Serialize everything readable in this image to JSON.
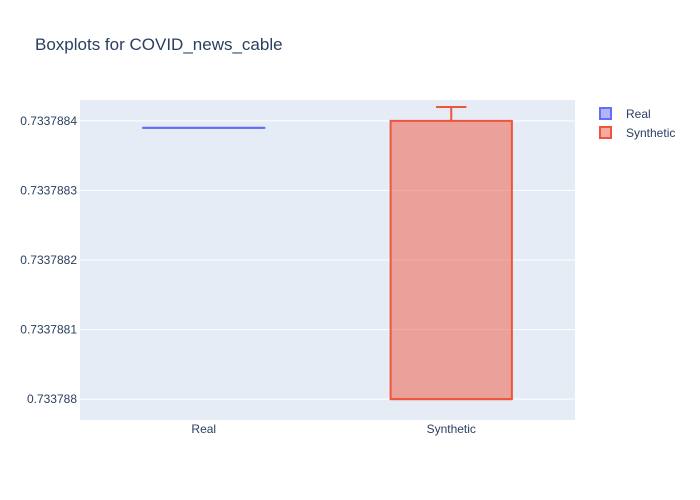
{
  "chart_data": {
    "type": "box",
    "title": "Boxplots for COVID_news_cable",
    "xlabel": "",
    "ylabel": "",
    "categories": [
      "Real",
      "Synthetic"
    ],
    "ylim": [
      0.73378797,
      0.73378843
    ],
    "yticks": [
      0.733788,
      0.7337881,
      0.7337882,
      0.7337883,
      0.7337884
    ],
    "ytick_labels": [
      "0.733788",
      "0.7337881",
      "0.7337882",
      "0.7337883",
      "0.7337884"
    ],
    "grid": true,
    "legend_position": "top-right",
    "series": [
      {
        "name": "Real",
        "color": "#636efa",
        "fill": "rgba(99,110,250,0.5)",
        "min": 0.73378839,
        "q1": 0.73378839,
        "median": 0.73378839,
        "q3": 0.73378839,
        "max": 0.73378839
      },
      {
        "name": "Synthetic",
        "color": "#ef553b",
        "fill": "rgba(239,85,59,0.5)",
        "min": 0.733788,
        "q1": 0.733788,
        "median": 0.733788,
        "q3": 0.7337884,
        "max": 0.73378842
      }
    ]
  }
}
